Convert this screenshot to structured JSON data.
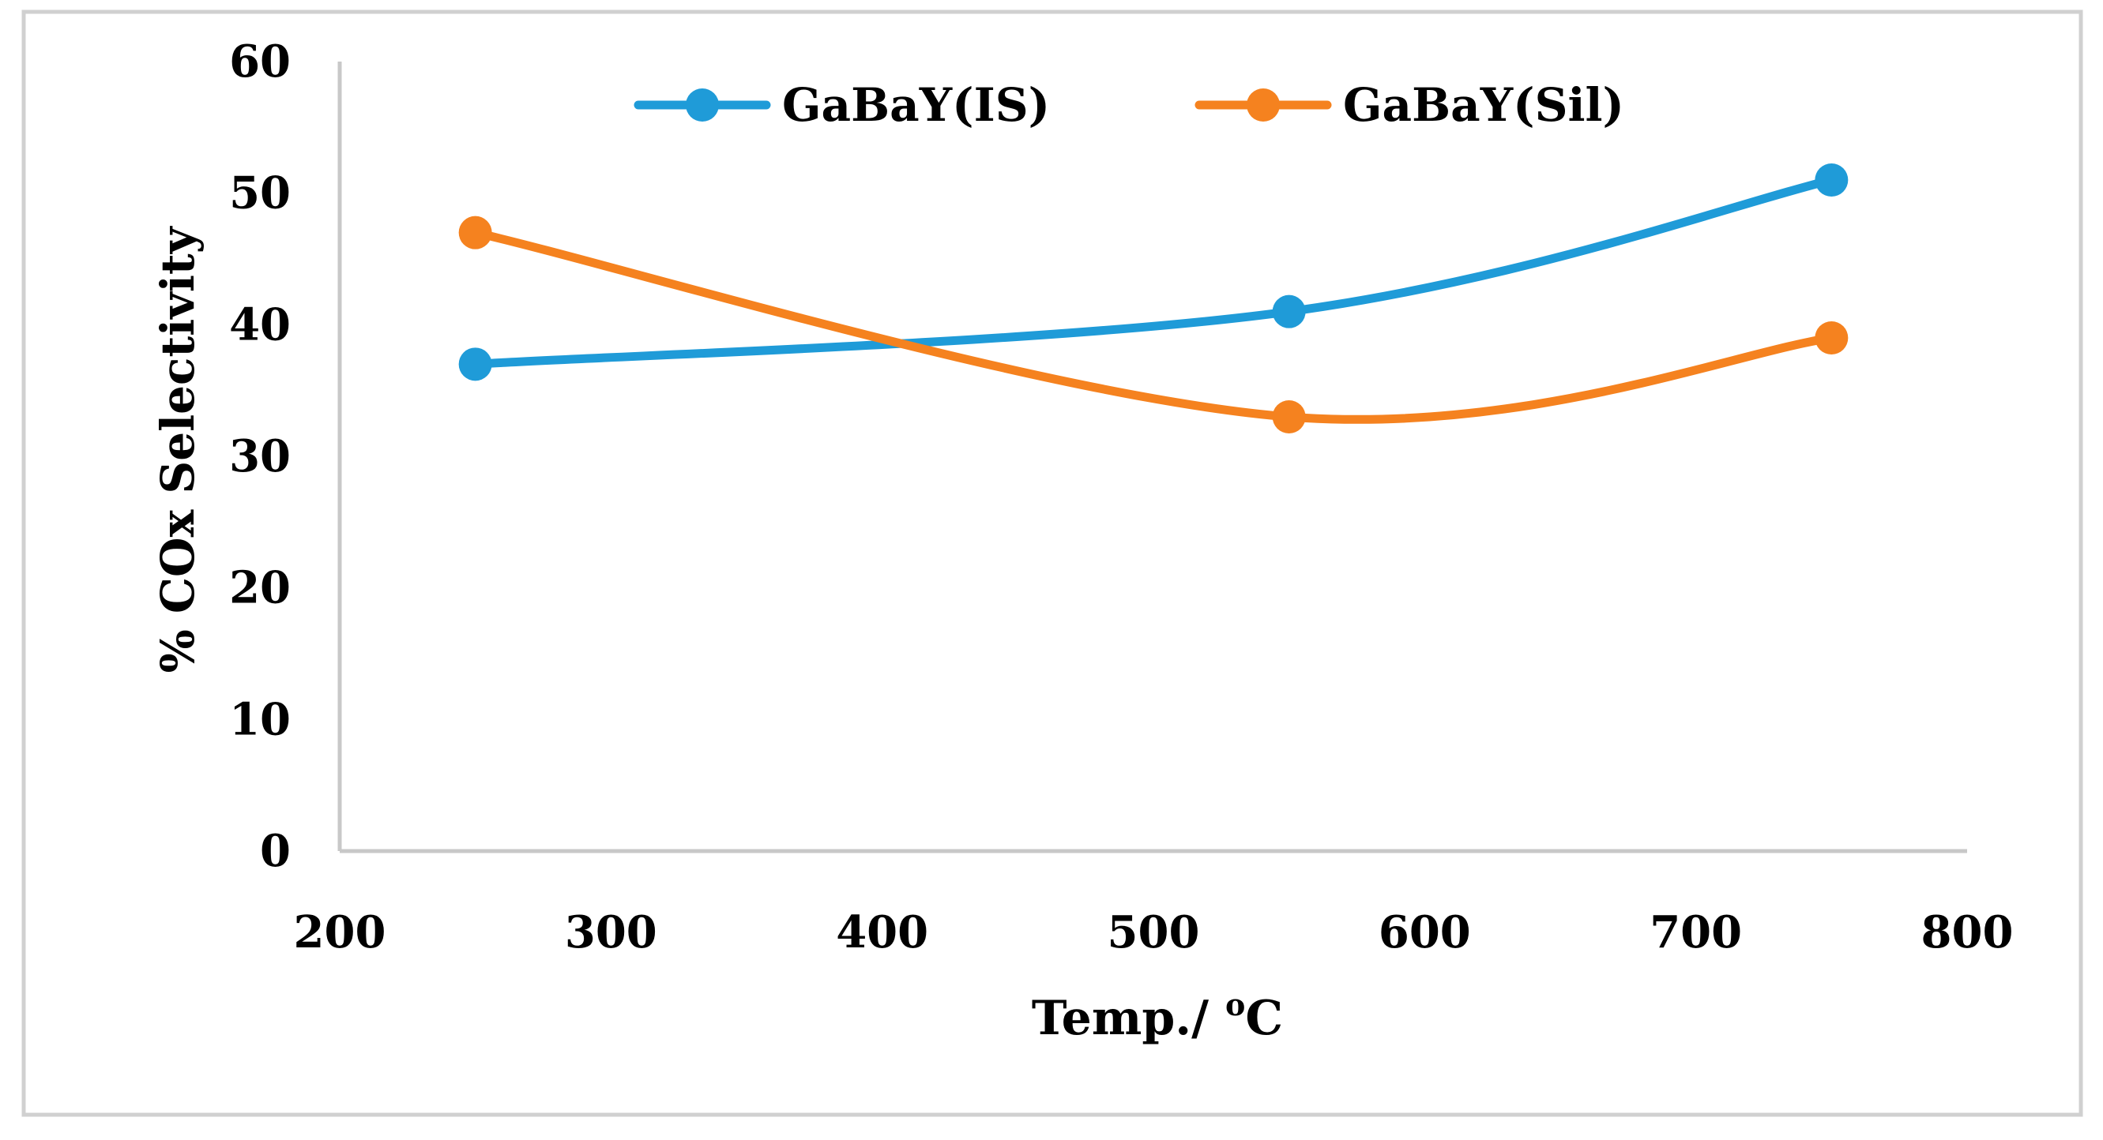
{
  "chart_data": {
    "type": "line",
    "title": "",
    "xlabel": "Temp./ ",
    "xlabel_superscript": "o",
    "xlabel_suffix": "C",
    "ylabel": "% COx Selectivity",
    "xlim": [
      200,
      800
    ],
    "ylim": [
      0,
      60
    ],
    "xticks": [
      200,
      300,
      400,
      500,
      600,
      700,
      800
    ],
    "yticks": [
      0,
      10,
      20,
      30,
      40,
      50,
      60
    ],
    "legend_position": "top-center",
    "smooth": true,
    "series": [
      {
        "name": "GaBaY(IS)",
        "color": "#1f9bd8",
        "x": [
          250,
          550,
          750
        ],
        "y": [
          37,
          41,
          51
        ]
      },
      {
        "name": "GaBaY(Sil)",
        "color": "#f5821f",
        "x": [
          250,
          550,
          750
        ],
        "y": [
          47,
          33,
          39
        ]
      }
    ],
    "axis_color": "#c8c8c8",
    "frame_color": "#d0d0d0"
  }
}
